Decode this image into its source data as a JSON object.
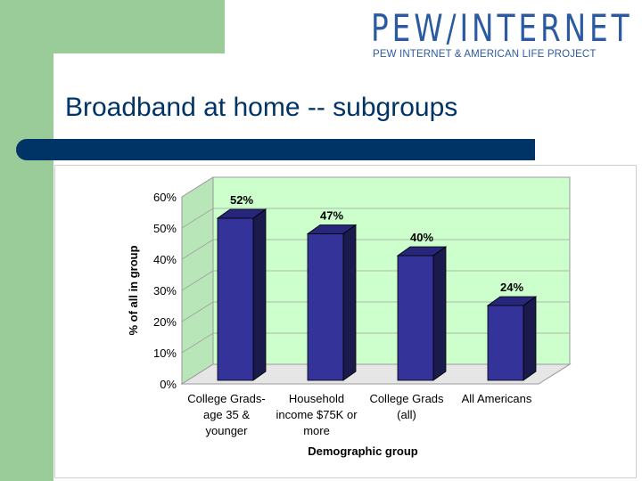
{
  "logo": {
    "name": "PEW/INTERNET",
    "tagline": "PEW INTERNET & AMERICAN LIFE PROJECT"
  },
  "slide": {
    "title": "Broadband at home -- subgroups"
  },
  "colors": {
    "title": "#003366",
    "accent_green": "#99cc99",
    "bar_front": "#333399",
    "bar_side": "#1a1a4d",
    "bar_top": "#26267a",
    "plot_back": "#ccffcc"
  },
  "chart_data": {
    "type": "bar",
    "title": "",
    "xlabel": "Demographic group",
    "ylabel": "% of all in group",
    "categories": [
      [
        "College Grads-",
        "age 35 &",
        "younger"
      ],
      [
        "Household",
        "income $75K or",
        "more"
      ],
      [
        "College Grads",
        "(all)"
      ],
      [
        "All Americans"
      ]
    ],
    "values": [
      52,
      47,
      40,
      24
    ],
    "data_labels": [
      "52%",
      "47%",
      "40%",
      "24%"
    ],
    "ylim": [
      0,
      60
    ],
    "yticks": [
      "0%",
      "10%",
      "20%",
      "30%",
      "40%",
      "50%",
      "60%"
    ],
    "grid": true,
    "legend": "none",
    "style": "3d-bar"
  }
}
